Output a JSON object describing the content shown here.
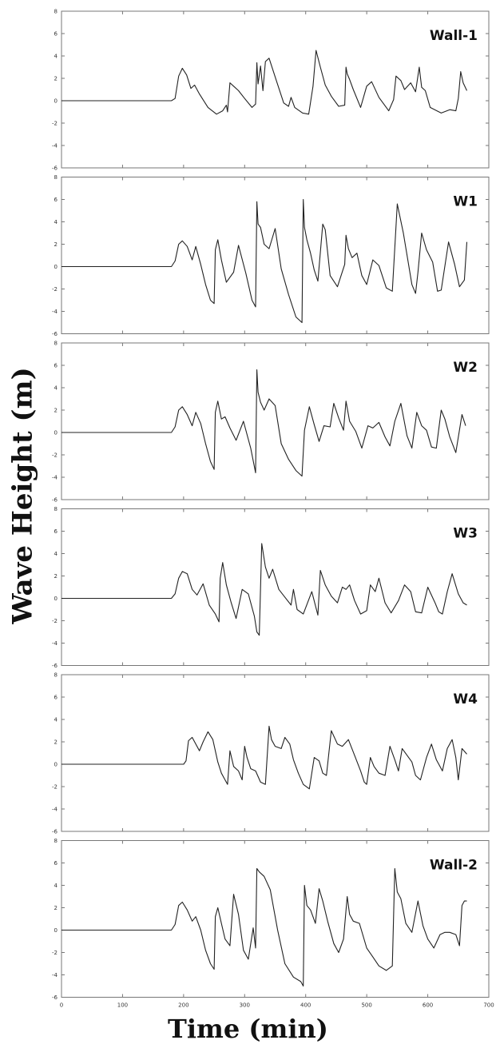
{
  "figure": {
    "ylabel": "Wave Height (m)",
    "xlabel": "Time (min)"
  },
  "chart_data": [
    {
      "type": "line",
      "title": "Wall-1",
      "xlim": [
        0,
        700
      ],
      "ylim": [
        -6,
        8
      ],
      "y_ticks": [
        -6,
        -4,
        -2,
        0,
        2,
        4,
        6,
        8
      ],
      "x_ticks": [
        0,
        100,
        200,
        300,
        400,
        500,
        600,
        700
      ],
      "grid": false,
      "series": [
        {
          "x": [
            0,
            180,
            186,
            192,
            198,
            205,
            212,
            218,
            226,
            240,
            254,
            264,
            270,
            272,
            276,
            282,
            290,
            300,
            312,
            318,
            320,
            322,
            326,
            330,
            334,
            340,
            352,
            364,
            372,
            376,
            382,
            395,
            405,
            412,
            417,
            424,
            432,
            442,
            454,
            464,
            466,
            468,
            472,
            478,
            490,
            500,
            508,
            520,
            536,
            544,
            548,
            556,
            562,
            572,
            580,
            586,
            590,
            596,
            604,
            622,
            636,
            646,
            650,
            654,
            658,
            664
          ],
          "y": [
            0,
            0,
            0.2,
            2.2,
            2.9,
            2.3,
            1.1,
            1.4,
            0.6,
            -0.6,
            -1.2,
            -0.9,
            -0.4,
            -1.0,
            1.6,
            1.3,
            0.9,
            0.2,
            -0.6,
            -0.3,
            3.4,
            1.5,
            3.1,
            0.9,
            3.5,
            3.8,
            1.8,
            -0.2,
            -0.5,
            0.3,
            -0.6,
            -1.1,
            -1.2,
            1.3,
            4.5,
            3.0,
            1.4,
            0.4,
            -0.5,
            -0.4,
            3.0,
            2.4,
            1.9,
            1.0,
            -0.6,
            1.3,
            1.7,
            0.3,
            -0.9,
            0.1,
            2.2,
            1.8,
            1.0,
            1.6,
            0.8,
            3.0,
            1.2,
            0.9,
            -0.6,
            -1.1,
            -0.8,
            -0.9,
            0.2,
            2.6,
            1.6,
            0.9
          ]
        }
      ]
    },
    {
      "type": "line",
      "title": "W1",
      "xlim": [
        0,
        700
      ],
      "ylim": [
        -6,
        8
      ],
      "y_ticks": [
        -6,
        -4,
        -2,
        0,
        2,
        4,
        6,
        8
      ],
      "x_ticks": [
        0,
        100,
        200,
        300,
        400,
        500,
        600,
        700
      ],
      "grid": false,
      "series": [
        {
          "x": [
            0,
            180,
            186,
            192,
            198,
            206,
            214,
            220,
            228,
            236,
            244,
            250,
            252,
            256,
            262,
            270,
            282,
            290,
            302,
            312,
            318,
            320,
            322,
            326,
            332,
            340,
            350,
            360,
            372,
            384,
            394,
            396,
            398,
            402,
            408,
            414,
            420,
            428,
            432,
            440,
            452,
            464,
            466,
            470,
            476,
            484,
            492,
            500,
            510,
            520,
            532,
            542,
            550,
            560,
            574,
            580,
            584,
            590,
            598,
            608,
            616,
            622,
            634,
            644,
            652,
            660,
            664
          ],
          "y": [
            0,
            0,
            0.5,
            2.0,
            2.3,
            1.8,
            0.6,
            1.8,
            0.2,
            -1.6,
            -3.0,
            -3.3,
            1.5,
            2.4,
            0.6,
            -1.4,
            -0.5,
            1.9,
            -0.6,
            -3.0,
            -3.6,
            5.8,
            3.8,
            3.5,
            2.0,
            1.6,
            3.4,
            -0.2,
            -2.5,
            -4.5,
            -5.0,
            6.0,
            3.5,
            2.4,
            1.2,
            -0.3,
            -1.3,
            3.8,
            3.3,
            -0.8,
            -1.8,
            0.2,
            2.8,
            1.6,
            0.8,
            1.2,
            -0.8,
            -1.6,
            0.6,
            0.1,
            -1.9,
            -2.2,
            5.6,
            3.0,
            -1.6,
            -2.4,
            -0.5,
            3.0,
            1.5,
            0.4,
            -2.2,
            -2.1,
            2.2,
            0.2,
            -1.8,
            -1.2,
            2.2
          ]
        }
      ]
    },
    {
      "type": "line",
      "title": "W2",
      "xlim": [
        0,
        700
      ],
      "ylim": [
        -6,
        8
      ],
      "y_ticks": [
        -6,
        -4,
        -2,
        0,
        2,
        4,
        6,
        8
      ],
      "x_ticks": [
        0,
        100,
        200,
        300,
        400,
        500,
        600,
        700
      ],
      "grid": false,
      "series": [
        {
          "x": [
            0,
            180,
            186,
            192,
            198,
            206,
            214,
            220,
            228,
            236,
            244,
            250,
            252,
            256,
            262,
            268,
            276,
            286,
            298,
            310,
            318,
            320,
            322,
            326,
            332,
            340,
            350,
            360,
            372,
            384,
            394,
            398,
            406,
            414,
            422,
            430,
            440,
            446,
            454,
            462,
            466,
            472,
            482,
            492,
            502,
            510,
            520,
            530,
            538,
            546,
            556,
            566,
            574,
            582,
            590,
            598,
            606,
            614,
            622,
            628,
            636,
            646,
            656,
            662
          ],
          "y": [
            0,
            0,
            0.5,
            2.0,
            2.3,
            1.6,
            0.6,
            1.8,
            0.8,
            -1.0,
            -2.6,
            -3.3,
            1.8,
            2.8,
            1.2,
            1.4,
            0.4,
            -0.7,
            1.0,
            -1.4,
            -3.6,
            5.6,
            3.6,
            2.7,
            2.0,
            3.0,
            2.4,
            -1.0,
            -2.4,
            -3.4,
            -3.9,
            0.2,
            2.3,
            0.7,
            -0.8,
            0.6,
            0.5,
            2.6,
            1.3,
            0.2,
            2.8,
            1.0,
            0.1,
            -1.4,
            0.6,
            0.4,
            0.9,
            -0.4,
            -1.2,
            1.0,
            2.6,
            -0.3,
            -1.4,
            1.8,
            0.6,
            0.2,
            -1.3,
            -1.4,
            2.0,
            1.2,
            -0.4,
            -1.8,
            1.6,
            0.6
          ]
        }
      ]
    },
    {
      "type": "line",
      "title": "W3",
      "xlim": [
        0,
        700
      ],
      "ylim": [
        -6,
        8
      ],
      "y_ticks": [
        -6,
        -4,
        -2,
        0,
        2,
        4,
        6,
        8
      ],
      "x_ticks": [
        0,
        100,
        200,
        300,
        400,
        500,
        600,
        700
      ],
      "grid": false,
      "series": [
        {
          "x": [
            0,
            180,
            186,
            192,
            198,
            206,
            214,
            222,
            232,
            242,
            252,
            258,
            260,
            264,
            270,
            278,
            286,
            296,
            306,
            316,
            320,
            324,
            328,
            334,
            340,
            346,
            356,
            366,
            376,
            380,
            386,
            396,
            410,
            420,
            424,
            432,
            442,
            452,
            460,
            466,
            472,
            480,
            490,
            500,
            506,
            514,
            520,
            530,
            540,
            552,
            562,
            572,
            580,
            590,
            600,
            612,
            618,
            624,
            632,
            640,
            650,
            658,
            664
          ],
          "y": [
            0,
            0,
            0.4,
            1.8,
            2.4,
            2.2,
            0.8,
            0.3,
            1.3,
            -0.6,
            -1.4,
            -2.1,
            1.8,
            3.2,
            1.2,
            -0.4,
            -1.8,
            0.8,
            0.4,
            -1.6,
            -3.0,
            -3.3,
            4.9,
            2.8,
            1.8,
            2.6,
            0.8,
            0.1,
            -0.6,
            0.8,
            -1.0,
            -1.4,
            0.6,
            -1.5,
            2.5,
            1.2,
            0.2,
            -0.4,
            1.0,
            0.8,
            1.2,
            -0.2,
            -1.4,
            -1.1,
            1.2,
            0.6,
            1.8,
            -0.4,
            -1.3,
            -0.2,
            1.2,
            0.6,
            -1.2,
            -1.3,
            1.0,
            -0.4,
            -1.2,
            -1.4,
            0.6,
            2.2,
            0.4,
            -0.4,
            -0.6
          ]
        }
      ]
    },
    {
      "type": "line",
      "title": "W4",
      "xlim": [
        0,
        700
      ],
      "ylim": [
        -6,
        8
      ],
      "y_ticks": [
        -6,
        -4,
        -2,
        0,
        2,
        4,
        6,
        8
      ],
      "x_ticks": [
        0,
        100,
        200,
        300,
        400,
        500,
        600,
        700
      ],
      "grid": false,
      "series": [
        {
          "x": [
            0,
            200,
            204,
            208,
            214,
            220,
            226,
            232,
            240,
            248,
            256,
            262,
            268,
            272,
            276,
            282,
            290,
            296,
            300,
            304,
            310,
            318,
            326,
            334,
            340,
            344,
            350,
            360,
            366,
            374,
            380,
            388,
            396,
            406,
            414,
            422,
            428,
            434,
            442,
            452,
            460,
            470,
            480,
            490,
            496,
            500,
            506,
            512,
            520,
            530,
            538,
            546,
            552,
            558,
            566,
            574,
            580,
            588,
            598,
            606,
            614,
            624,
            632,
            640,
            646,
            650,
            656,
            664
          ],
          "y": [
            0,
            0,
            0.3,
            2.1,
            2.4,
            1.8,
            1.2,
            2.0,
            2.9,
            2.2,
            0.2,
            -0.8,
            -1.4,
            -1.8,
            1.2,
            -0.2,
            -0.6,
            -1.4,
            1.6,
            0.6,
            -0.4,
            -0.6,
            -1.6,
            -1.8,
            3.4,
            2.2,
            1.6,
            1.4,
            2.4,
            1.8,
            0.4,
            -0.8,
            -1.8,
            -2.2,
            0.6,
            0.3,
            -0.8,
            -1.0,
            3.0,
            1.8,
            1.6,
            2.2,
            0.8,
            -0.6,
            -1.6,
            -1.8,
            0.6,
            -0.2,
            -0.8,
            -1.0,
            1.6,
            0.4,
            -0.6,
            1.4,
            0.8,
            0.2,
            -1.0,
            -1.4,
            0.6,
            1.8,
            0.4,
            -0.6,
            1.4,
            2.2,
            0.6,
            -1.4,
            1.4,
            0.9
          ]
        }
      ]
    },
    {
      "type": "line",
      "title": "Wall-2",
      "xlim": [
        0,
        700
      ],
      "ylim": [
        -6,
        8
      ],
      "y_ticks": [
        -6,
        -4,
        -2,
        0,
        2,
        4,
        6,
        8
      ],
      "x_ticks": [
        0,
        100,
        200,
        300,
        400,
        500,
        600,
        700
      ],
      "grid": false,
      "series": [
        {
          "x": [
            0,
            180,
            186,
            192,
            198,
            206,
            214,
            220,
            228,
            236,
            244,
            250,
            252,
            256,
            262,
            268,
            276,
            282,
            290,
            298,
            306,
            314,
            318,
            320,
            324,
            332,
            342,
            354,
            366,
            380,
            392,
            396,
            398,
            402,
            408,
            416,
            422,
            428,
            436,
            446,
            454,
            462,
            468,
            472,
            478,
            488,
            500,
            510,
            520,
            532,
            542,
            546,
            550,
            556,
            564,
            574,
            584,
            592,
            600,
            610,
            620,
            628,
            636,
            646,
            652,
            656,
            660,
            664
          ],
          "y": [
            0,
            0,
            0.5,
            2.2,
            2.5,
            1.8,
            0.8,
            1.2,
            0.0,
            -1.8,
            -3.0,
            -3.5,
            1.2,
            2.0,
            0.6,
            -0.8,
            -1.4,
            3.2,
            1.4,
            -1.8,
            -2.6,
            0.2,
            -1.6,
            5.5,
            5.2,
            4.8,
            3.6,
            0.0,
            -3.0,
            -4.2,
            -4.6,
            -5.0,
            4.0,
            2.2,
            1.8,
            0.6,
            3.7,
            2.6,
            0.8,
            -1.2,
            -2.0,
            -0.8,
            3.0,
            1.4,
            0.8,
            0.6,
            -1.6,
            -2.4,
            -3.2,
            -3.6,
            -3.2,
            5.5,
            3.4,
            2.8,
            0.6,
            -0.2,
            2.6,
            0.4,
            -0.8,
            -1.6,
            -0.4,
            -0.2,
            -0.2,
            -0.4,
            -1.4,
            2.2,
            2.6,
            2.6
          ]
        }
      ]
    }
  ]
}
